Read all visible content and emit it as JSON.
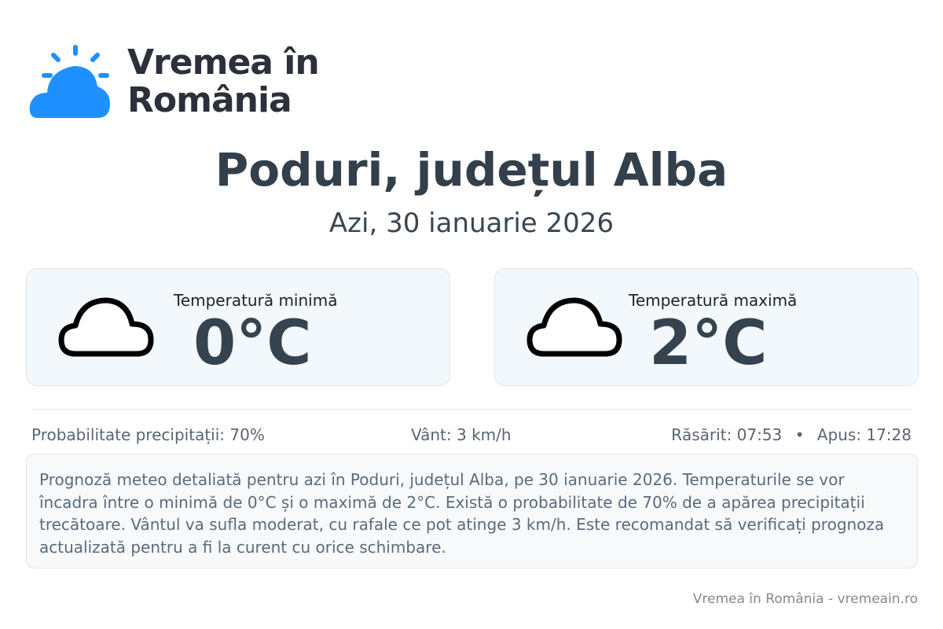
{
  "brand": {
    "line1": "Vremea în",
    "line2": "România",
    "color": "#1e90ff"
  },
  "header": {
    "title": "Poduri, județul Alba",
    "date": "Azi, 30 ianuarie 2026"
  },
  "cards": [
    {
      "label": "Temperatură minimă",
      "value": "0°C",
      "icon": "cloud-icon"
    },
    {
      "label": "Temperatură maximă",
      "value": "2°C",
      "icon": "cloud-icon"
    }
  ],
  "stats": {
    "precip": "Probabilitate precipitații: 70%",
    "wind": "Vânt: 3 km/h",
    "sunrise": "Răsărit: 07:53",
    "sep": "•",
    "sunset": "Apus: 17:28"
  },
  "description": "Prognoză meteo detaliată pentru azi în Poduri, județul Alba, pe 30 ianuarie 2026. Temperaturile se vor încadra între o minimă de 0°C și o maximă de 2°C. Există o probabilitate de 70% de a apărea precipitații trecătoare. Vântul va sufla moderat, cu rafale ce pot atinge 3 km/h. Este recomandat să verificați prognoza actualizată pentru a fi la curent cu orice schimbare.",
  "footer": "Vremea în România - vremeain.ro"
}
